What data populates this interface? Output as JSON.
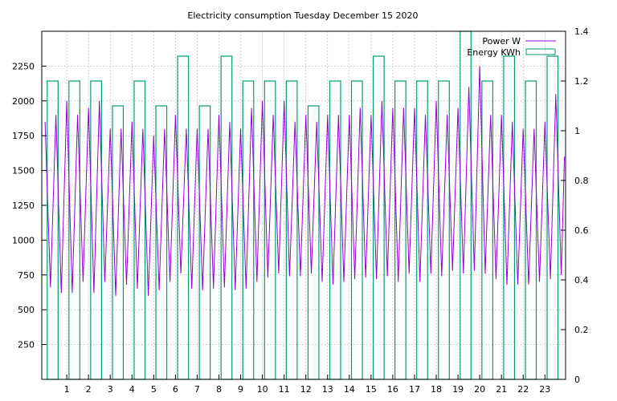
{
  "chart_data": {
    "type": "line",
    "title": "Electricity consumption Tuesday December 15 2020",
    "xlabel": "",
    "ylabel": "",
    "y2label": "",
    "xlim": [
      -0.15,
      23.95
    ],
    "ylim": [
      0,
      2500
    ],
    "y2lim": [
      0,
      1.4
    ],
    "x_ticks": [
      "1",
      "2",
      "3",
      "4",
      "5",
      "6",
      "7",
      "8",
      "9",
      "10",
      "11",
      "12",
      "13",
      "14",
      "15",
      "16",
      "17",
      "18",
      "19",
      "20",
      "21",
      "22",
      "23"
    ],
    "y_ticks": [
      "250",
      "500",
      "750",
      "1000",
      "1250",
      "1500",
      "1750",
      "2000",
      "2250"
    ],
    "y2_ticks": [
      "0",
      "0.2",
      "0.4",
      "0.6",
      "0.8",
      "1",
      "1.2",
      "1.4"
    ],
    "grid": true,
    "legend_position": "top-right",
    "series": [
      {
        "name": "Power W",
        "axis": "left",
        "style": "line",
        "color": "#9400d3",
        "x": [
          0.0,
          0.25,
          0.5,
          0.75,
          1.0,
          1.25,
          1.5,
          1.75,
          2.0,
          2.25,
          2.5,
          2.75,
          3.0,
          3.25,
          3.5,
          3.75,
          4.0,
          4.25,
          4.5,
          4.75,
          5.0,
          5.25,
          5.5,
          5.75,
          6.0,
          6.25,
          6.5,
          6.75,
          7.0,
          7.25,
          7.5,
          7.75,
          8.0,
          8.25,
          8.5,
          8.75,
          9.0,
          9.25,
          9.5,
          9.75,
          10.0,
          10.25,
          10.5,
          10.75,
          11.0,
          11.25,
          11.5,
          11.75,
          12.0,
          12.25,
          12.5,
          12.75,
          13.0,
          13.25,
          13.5,
          13.75,
          14.0,
          14.25,
          14.5,
          14.75,
          15.0,
          15.25,
          15.5,
          15.75,
          16.0,
          16.25,
          16.5,
          16.75,
          17.0,
          17.25,
          17.5,
          17.75,
          18.0,
          18.25,
          18.5,
          18.75,
          19.0,
          19.25,
          19.5,
          19.75,
          20.0,
          20.25,
          20.5,
          20.75,
          21.0,
          21.25,
          21.5,
          21.75,
          22.0,
          22.25,
          22.5,
          22.75,
          23.0,
          23.25,
          23.5,
          23.75,
          23.9
        ],
        "values": [
          1850,
          660,
          1900,
          620,
          2000,
          620,
          1900,
          700,
          1950,
          620,
          2000,
          700,
          1800,
          600,
          1800,
          680,
          1850,
          650,
          1800,
          600,
          1750,
          640,
          1800,
          700,
          1900,
          760,
          1800,
          650,
          1800,
          640,
          1800,
          650,
          1900,
          660,
          1850,
          640,
          1800,
          650,
          1950,
          700,
          2000,
          730,
          1900,
          760,
          2000,
          740,
          1850,
          740,
          1900,
          760,
          1850,
          700,
          1900,
          680,
          1900,
          700,
          1900,
          720,
          1950,
          730,
          1900,
          720,
          2000,
          740,
          1950,
          700,
          1950,
          760,
          1950,
          700,
          1900,
          760,
          2000,
          740,
          1900,
          780,
          1950,
          760,
          2100,
          780,
          2250,
          760,
          1900,
          720,
          1900,
          680,
          1850,
          680,
          1800,
          680,
          1800,
          700,
          1850,
          720,
          2050,
          750,
          1600
        ]
      },
      {
        "name": "Energy KWh",
        "axis": "right",
        "style": "bar",
        "color": "#009e73",
        "x": [
          0,
          1,
          2,
          3,
          4,
          5,
          6,
          7,
          8,
          9,
          10,
          11,
          12,
          13,
          14,
          15,
          16,
          17,
          18,
          19,
          20,
          21,
          22,
          23
        ],
        "values": [
          1.2,
          1.2,
          1.2,
          1.1,
          1.2,
          1.1,
          1.3,
          1.1,
          1.3,
          1.2,
          1.2,
          1.2,
          1.1,
          1.2,
          1.2,
          1.3,
          1.2,
          1.2,
          1.2,
          1.4,
          1.2,
          1.3,
          1.2,
          1.3
        ]
      }
    ]
  }
}
